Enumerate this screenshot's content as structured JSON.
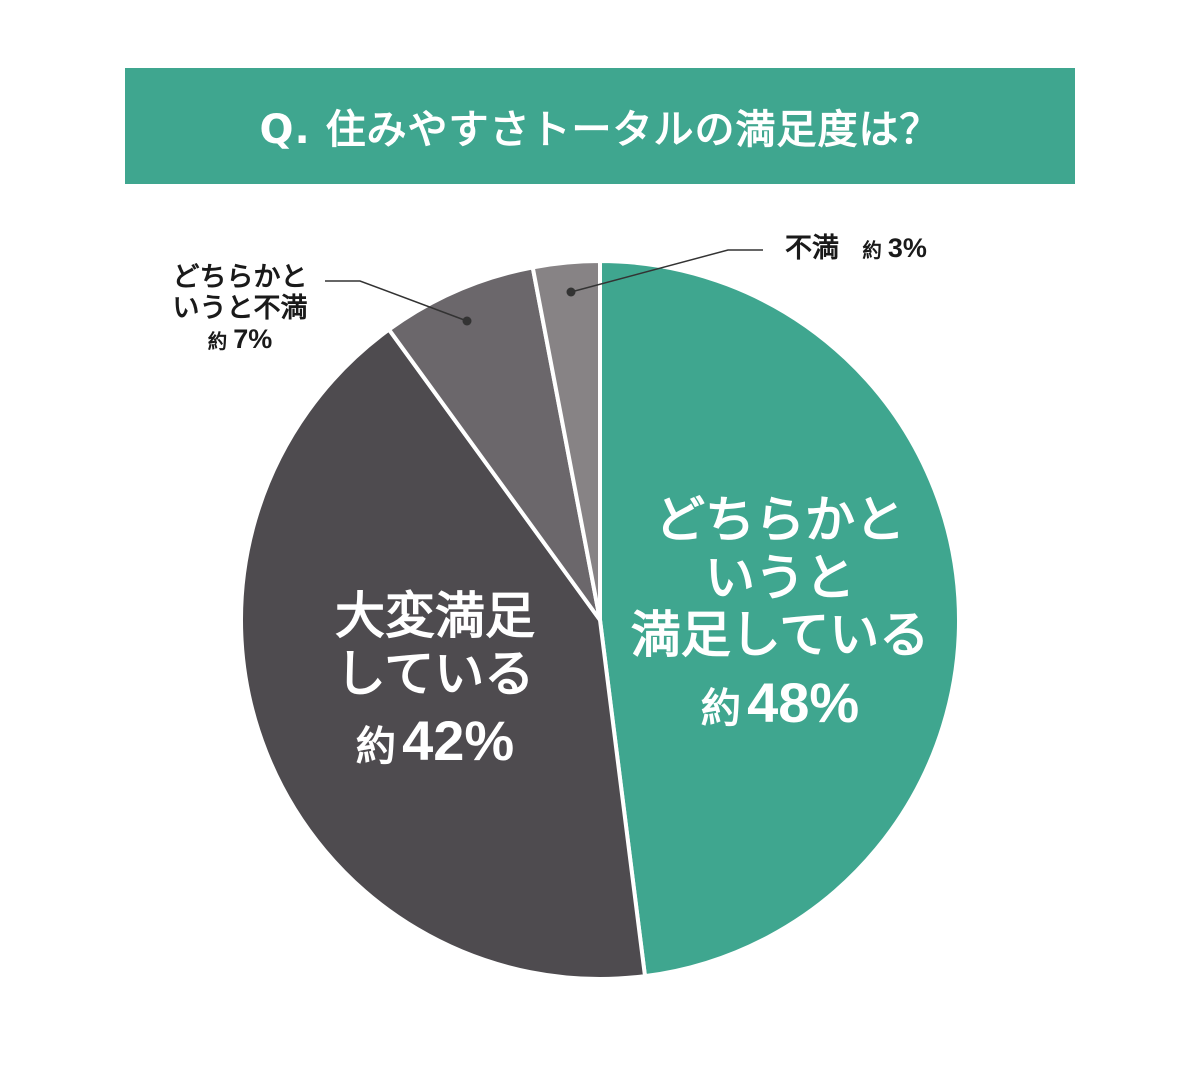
{
  "title": "Q. 住みやすさトータルの満足度は？",
  "colors": {
    "title_bg": "#3fa68f",
    "slice_green": "#3fa68f",
    "slice_dark": "#4e4b4f",
    "slice_mid": "#6b676b",
    "slice_light": "#878385",
    "separator": "#ffffff",
    "leader": "#333333"
  },
  "labels": {
    "somewhat_satisfied": {
      "line1": "どちらかと",
      "line2": "いうと",
      "line3": "満足している",
      "prefix": "約",
      "value": "48%"
    },
    "very_satisfied": {
      "line1": "大変満足",
      "line2": "している",
      "prefix": "約",
      "value": "42%"
    },
    "somewhat_dissatisfied": {
      "line1": "どちらかと",
      "line2": "いうと不満",
      "prefix": "約",
      "value": "7%"
    },
    "dissatisfied": {
      "line1": "不満",
      "prefix": "約",
      "value": "3%"
    }
  },
  "chart_data": {
    "type": "pie",
    "title": "Q. 住みやすさトータルの満足度は？",
    "categories": [
      "どちらかというと満足している",
      "大変満足している",
      "どちらかというと不満",
      "不満"
    ],
    "values": [
      48,
      42,
      7,
      3
    ],
    "units": "%",
    "colors": [
      "#3fa68f",
      "#4e4b4f",
      "#6b676b",
      "#878385"
    ],
    "start_angle": "12 o'clock",
    "direction": "clockwise",
    "legend": "none (direct labels)"
  }
}
